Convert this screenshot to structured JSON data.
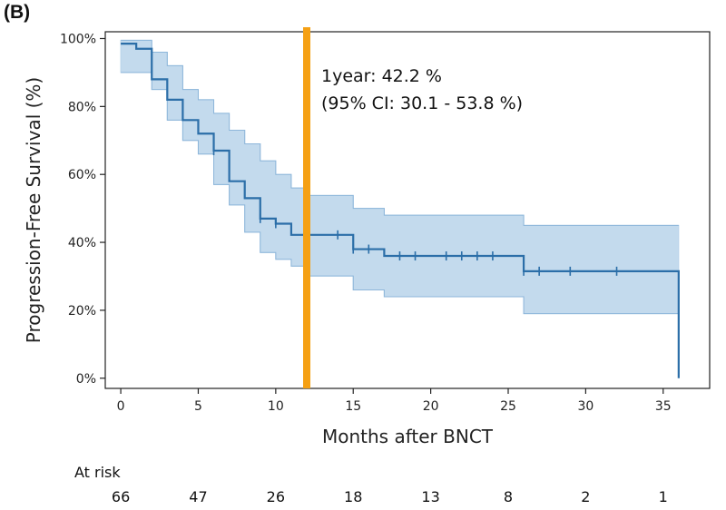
{
  "panel_label": "(B)",
  "chart_data": {
    "type": "line",
    "subtype": "kaplan-meier",
    "xlabel": "Months after BNCT",
    "ylabel": "Progression-Free Survival (%)",
    "xlim": [
      -1,
      38
    ],
    "ylim": [
      -3,
      102
    ],
    "x_ticks": [
      0,
      5,
      10,
      15,
      20,
      25,
      30,
      35
    ],
    "y_ticks": [
      0,
      20,
      40,
      60,
      80,
      100
    ],
    "y_tick_labels": [
      "0%",
      "20%",
      "40%",
      "60%",
      "80%",
      "100%"
    ],
    "grid": false,
    "colors": {
      "line": "#2b6ea8",
      "band": "#b8d3ea",
      "marker": "#f5a014"
    },
    "survival_steps": [
      [
        0,
        98.5
      ],
      [
        1,
        97
      ],
      [
        2,
        88
      ],
      [
        3,
        82
      ],
      [
        4,
        76
      ],
      [
        5,
        72
      ],
      [
        6,
        67
      ],
      [
        7,
        58
      ],
      [
        8,
        53
      ],
      [
        9,
        47
      ],
      [
        10,
        45.5
      ],
      [
        11,
        42.2
      ],
      [
        15,
        38
      ],
      [
        17,
        36
      ],
      [
        26,
        31.5
      ],
      [
        36,
        0
      ]
    ],
    "ci_upper_steps": [
      [
        0,
        99.5
      ],
      [
        2,
        96
      ],
      [
        3,
        92
      ],
      [
        4,
        85
      ],
      [
        5,
        82
      ],
      [
        6,
        78
      ],
      [
        7,
        73
      ],
      [
        8,
        69
      ],
      [
        9,
        64
      ],
      [
        10,
        60
      ],
      [
        11,
        56
      ],
      [
        12,
        53.8
      ],
      [
        15,
        50
      ],
      [
        17,
        48
      ],
      [
        26,
        45
      ],
      [
        36,
        45
      ]
    ],
    "ci_lower_steps": [
      [
        0,
        90
      ],
      [
        2,
        85
      ],
      [
        3,
        76
      ],
      [
        4,
        70
      ],
      [
        5,
        66
      ],
      [
        6,
        57
      ],
      [
        7,
        51
      ],
      [
        8,
        43
      ],
      [
        9,
        37
      ],
      [
        10,
        35
      ],
      [
        11,
        33
      ],
      [
        12,
        30.1
      ],
      [
        15,
        26
      ],
      [
        17,
        24
      ],
      [
        26,
        19
      ],
      [
        36,
        19
      ]
    ],
    "censor_marks": [
      [
        6,
        67
      ],
      [
        9,
        47
      ],
      [
        10,
        45.5
      ],
      [
        14,
        42.2
      ],
      [
        15,
        38
      ],
      [
        16,
        38
      ],
      [
        18,
        36
      ],
      [
        19,
        36
      ],
      [
        21,
        36
      ],
      [
        22,
        36
      ],
      [
        23,
        36
      ],
      [
        24,
        36
      ],
      [
        26,
        31.5
      ],
      [
        27,
        31.5
      ],
      [
        29,
        31.5
      ],
      [
        32,
        31.5
      ]
    ],
    "vertical_marker_x": 12,
    "annotation": {
      "line1": "1year: 42.2 %",
      "line2": "(95% CI: 30.1 - 53.8 %)"
    },
    "at_risk": {
      "label": "At risk",
      "times": [
        0,
        5,
        10,
        15,
        20,
        25,
        30,
        35
      ],
      "counts": [
        "66",
        "47",
        "26",
        "18",
        "13",
        "8",
        "2",
        "1"
      ]
    }
  }
}
